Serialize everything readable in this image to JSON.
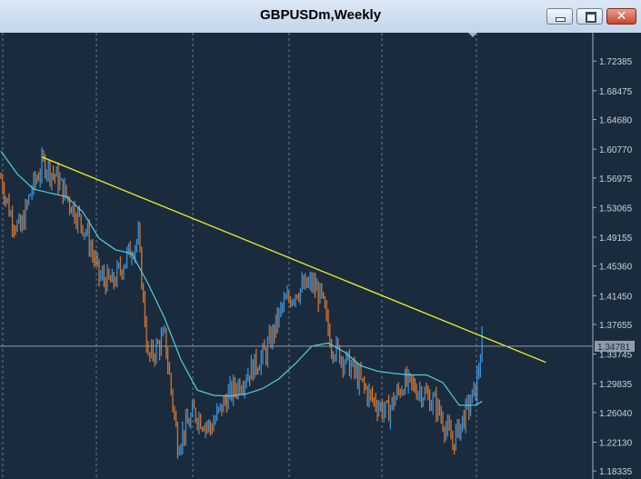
{
  "window": {
    "title": "GBPUSDm,Weekly",
    "buttons": {
      "minimize_icon": "minimize-icon",
      "maximize_icon": "maximize-icon",
      "close_icon": "close-icon",
      "close_glyph": "✕"
    }
  },
  "colors": {
    "background": "#1b2b3e",
    "grid": "#7d8ea1",
    "bull": "#3a8fd6",
    "bear": "#d4742a",
    "ma": "#4fd2df",
    "trendline": "#f2f026",
    "price_line": "#8f9daa"
  },
  "chart_data": {
    "type": "candlestick",
    "symbol": "GBPUSDm",
    "timeframe": "Weekly",
    "ylim": [
      1.1835,
      1.7385
    ],
    "y_ticks": [
      "1.72385",
      "1.68475",
      "1.64680",
      "1.60770",
      "1.56975",
      "1.53065",
      "1.49155",
      "1.45360",
      "1.41450",
      "1.37655",
      "1.33745",
      "1.29835",
      "1.26040",
      "1.22130",
      "1.18335"
    ],
    "current_price": "1.34781",
    "current_price_value": 1.34781,
    "bar_count": 295,
    "price_path": [
      [
        0,
        1.57
      ],
      [
        6,
        1.52
      ],
      [
        12,
        1.5
      ],
      [
        18,
        1.55
      ],
      [
        26,
        1.59
      ],
      [
        34,
        1.57
      ],
      [
        44,
        1.53
      ],
      [
        52,
        1.5
      ],
      [
        60,
        1.44
      ],
      [
        68,
        1.43
      ],
      [
        78,
        1.47
      ],
      [
        84,
        1.49
      ],
      [
        90,
        1.33
      ],
      [
        100,
        1.36
      ],
      [
        108,
        1.22
      ],
      [
        118,
        1.26
      ],
      [
        128,
        1.24
      ],
      [
        138,
        1.28
      ],
      [
        150,
        1.31
      ],
      [
        162,
        1.34
      ],
      [
        172,
        1.4
      ],
      [
        180,
        1.42
      ],
      [
        190,
        1.43
      ],
      [
        196,
        1.41
      ],
      [
        202,
        1.35
      ],
      [
        214,
        1.32
      ],
      [
        226,
        1.28
      ],
      [
        236,
        1.26
      ],
      [
        246,
        1.3
      ],
      [
        256,
        1.29
      ],
      [
        266,
        1.27
      ],
      [
        276,
        1.22
      ],
      [
        284,
        1.26
      ],
      [
        290,
        1.29
      ],
      [
        294,
        1.35
      ]
    ],
    "moving_average": [
      [
        0,
        1.605
      ],
      [
        10,
        1.575
      ],
      [
        20,
        1.555
      ],
      [
        30,
        1.55
      ],
      [
        40,
        1.545
      ],
      [
        50,
        1.525
      ],
      [
        60,
        1.49
      ],
      [
        70,
        1.475
      ],
      [
        80,
        1.47
      ],
      [
        90,
        1.43
      ],
      [
        100,
        1.385
      ],
      [
        110,
        1.33
      ],
      [
        120,
        1.29
      ],
      [
        130,
        1.283
      ],
      [
        140,
        1.282
      ],
      [
        150,
        1.285
      ],
      [
        160,
        1.292
      ],
      [
        170,
        1.305
      ],
      [
        180,
        1.325
      ],
      [
        190,
        1.348
      ],
      [
        200,
        1.352
      ],
      [
        210,
        1.34
      ],
      [
        220,
        1.322
      ],
      [
        230,
        1.315
      ],
      [
        240,
        1.312
      ],
      [
        250,
        1.31
      ],
      [
        260,
        1.31
      ],
      [
        270,
        1.3
      ],
      [
        280,
        1.27
      ],
      [
        290,
        1.27
      ],
      [
        294,
        1.275
      ]
    ],
    "trendline": {
      "from": [
        25,
        1.5975
      ],
      "to": [
        333,
        1.3265
      ]
    },
    "grid": true
  }
}
